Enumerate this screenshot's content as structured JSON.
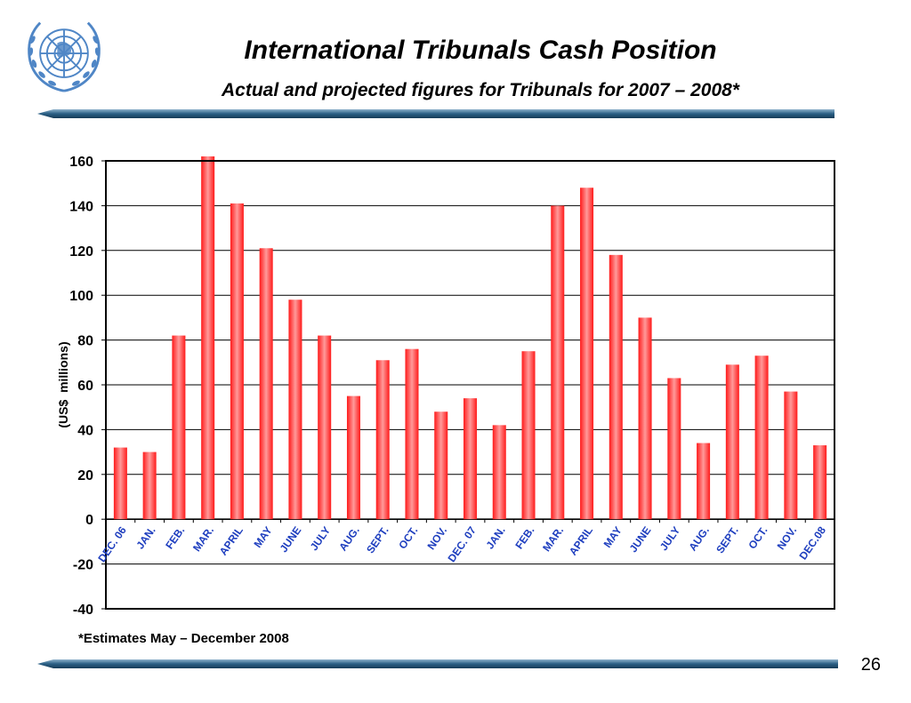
{
  "slide": {
    "title": "International Tribunals Cash Position",
    "subtitle": "Actual and projected figures for Tribunals for 2007 – 2008*",
    "footnote": "*Estimates May – December 2008",
    "page_number": "26",
    "logo": "un-emblem-icon",
    "colors": {
      "rule": "#1f4e6e",
      "rule_light": "#8fb3cc",
      "bar": "#ff0000",
      "bar_light": "#ff9999",
      "tick_label": "#1f3fbf"
    }
  },
  "chart_data": {
    "type": "bar",
    "title": "",
    "xlabel": "",
    "ylabel": "(US$  millions)",
    "ylim": [
      -40,
      160
    ],
    "yticks": [
      -40,
      -20,
      0,
      20,
      40,
      60,
      80,
      100,
      120,
      140,
      160
    ],
    "grid": true,
    "legend": "none",
    "categories": [
      "DEC. 06",
      "JAN.",
      "FEB.",
      "MAR.",
      "APRIL",
      "MAY",
      "JUNE",
      "JULY",
      "AUG.",
      "SEPT.",
      "OCT.",
      "NOV.",
      "DEC. 07",
      "JAN.",
      "FEB.",
      "MAR.",
      "APRIL",
      "MAY",
      "JUNE",
      "JULY",
      "AUG.",
      "SEPT.",
      "OCT.",
      "NOV.",
      "DEC.08"
    ],
    "values": [
      32,
      30,
      82,
      162,
      141,
      121,
      98,
      82,
      55,
      71,
      76,
      48,
      54,
      42,
      75,
      140,
      148,
      118,
      90,
      63,
      34,
      69,
      73,
      57,
      33
    ]
  }
}
